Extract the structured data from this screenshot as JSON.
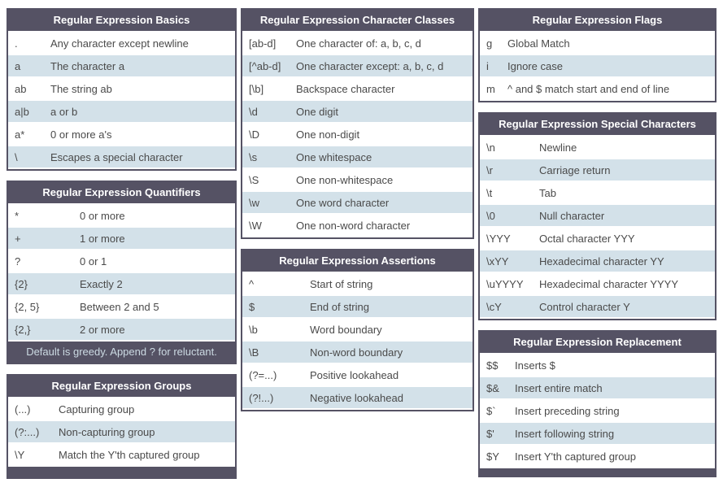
{
  "colors": {
    "header_bg": "#555264",
    "row_alt_bg": "#d3e1e9",
    "row_text": "#4a4a4a",
    "header_text": "#ffffff"
  },
  "tables": {
    "basics": {
      "title": "Regular Expression Basics",
      "rows": [
        {
          "sym": ".",
          "desc": "Any character except newline"
        },
        {
          "sym": "a",
          "desc": "The character a"
        },
        {
          "sym": "ab",
          "desc": "The string ab"
        },
        {
          "sym": "a|b",
          "desc": "a or b"
        },
        {
          "sym": "a*",
          "desc": "0 or more a's"
        },
        {
          "sym": "\\",
          "desc": "Escapes a special character"
        }
      ]
    },
    "quantifiers": {
      "title": "Regular Expression Quantifiers",
      "rows": [
        {
          "sym": "*",
          "desc": "0 or more"
        },
        {
          "sym": "+",
          "desc": "1 or more"
        },
        {
          "sym": "?",
          "desc": "0 or 1"
        },
        {
          "sym": "{2}",
          "desc": "Exactly 2"
        },
        {
          "sym": "{2, 5}",
          "desc": "Between 2 and 5"
        },
        {
          "sym": "{2,}",
          "desc": "2 or more"
        }
      ],
      "footer": "Default is greedy. Append ? for reluctant."
    },
    "groups": {
      "title": "Regular Expression Groups",
      "rows": [
        {
          "sym": "(...)",
          "desc": "Capturing group"
        },
        {
          "sym": "(?:...)",
          "desc": "Non-capturing group"
        },
        {
          "sym": "\\Y",
          "desc": "Match the Y'th captured group"
        }
      ]
    },
    "char_classes": {
      "title": "Regular Expression Character Classes",
      "rows": [
        {
          "sym": "[ab-d]",
          "desc": "One character of: a, b, c, d"
        },
        {
          "sym": "[^ab-d]",
          "desc": "One character except: a, b, c, d"
        },
        {
          "sym": "[\\b]",
          "desc": "Backspace character"
        },
        {
          "sym": "\\d",
          "desc": "One digit"
        },
        {
          "sym": "\\D",
          "desc": "One non-digit"
        },
        {
          "sym": "\\s",
          "desc": "One whitespace"
        },
        {
          "sym": "\\S",
          "desc": "One non-whitespace"
        },
        {
          "sym": "\\w",
          "desc": "One word character"
        },
        {
          "sym": "\\W",
          "desc": "One non-word character"
        }
      ]
    },
    "assertions": {
      "title": "Regular Expression Assertions",
      "rows": [
        {
          "sym": "^",
          "desc": "Start of string"
        },
        {
          "sym": "$",
          "desc": "End of string"
        },
        {
          "sym": "\\b",
          "desc": "Word boundary"
        },
        {
          "sym": "\\B",
          "desc": "Non-word boundary"
        },
        {
          "sym": "(?=...)",
          "desc": "Positive lookahead"
        },
        {
          "sym": "(?!...)",
          "desc": "Negative lookahead"
        }
      ]
    },
    "flags": {
      "title": "Regular Expression Flags",
      "rows": [
        {
          "sym": "g",
          "desc": "Global Match"
        },
        {
          "sym": "i",
          "desc": "Ignore case"
        },
        {
          "sym": "m",
          "desc": "^ and $ match start and end of line"
        }
      ]
    },
    "special": {
      "title": "Regular Expression Special Characters",
      "rows": [
        {
          "sym": "\\n",
          "desc": "Newline"
        },
        {
          "sym": "\\r",
          "desc": "Carriage return"
        },
        {
          "sym": "\\t",
          "desc": "Tab"
        },
        {
          "sym": "\\0",
          "desc": "Null character"
        },
        {
          "sym": "\\YYY",
          "desc": "Octal character YYY"
        },
        {
          "sym": "\\xYY",
          "desc": "Hexadecimal character YY"
        },
        {
          "sym": "\\uYYYY",
          "desc": "Hexadecimal character YYYY"
        },
        {
          "sym": "\\cY",
          "desc": "Control character Y"
        }
      ]
    },
    "replacement": {
      "title": "Regular Expression Replacement",
      "rows": [
        {
          "sym": "$$",
          "desc": "Inserts $"
        },
        {
          "sym": "$&",
          "desc": "Insert entire match"
        },
        {
          "sym": "$`",
          "desc": "Insert preceding string"
        },
        {
          "sym": "$'",
          "desc": "Insert following string"
        },
        {
          "sym": "$Y",
          "desc": "Insert Y'th captured group"
        }
      ]
    }
  }
}
